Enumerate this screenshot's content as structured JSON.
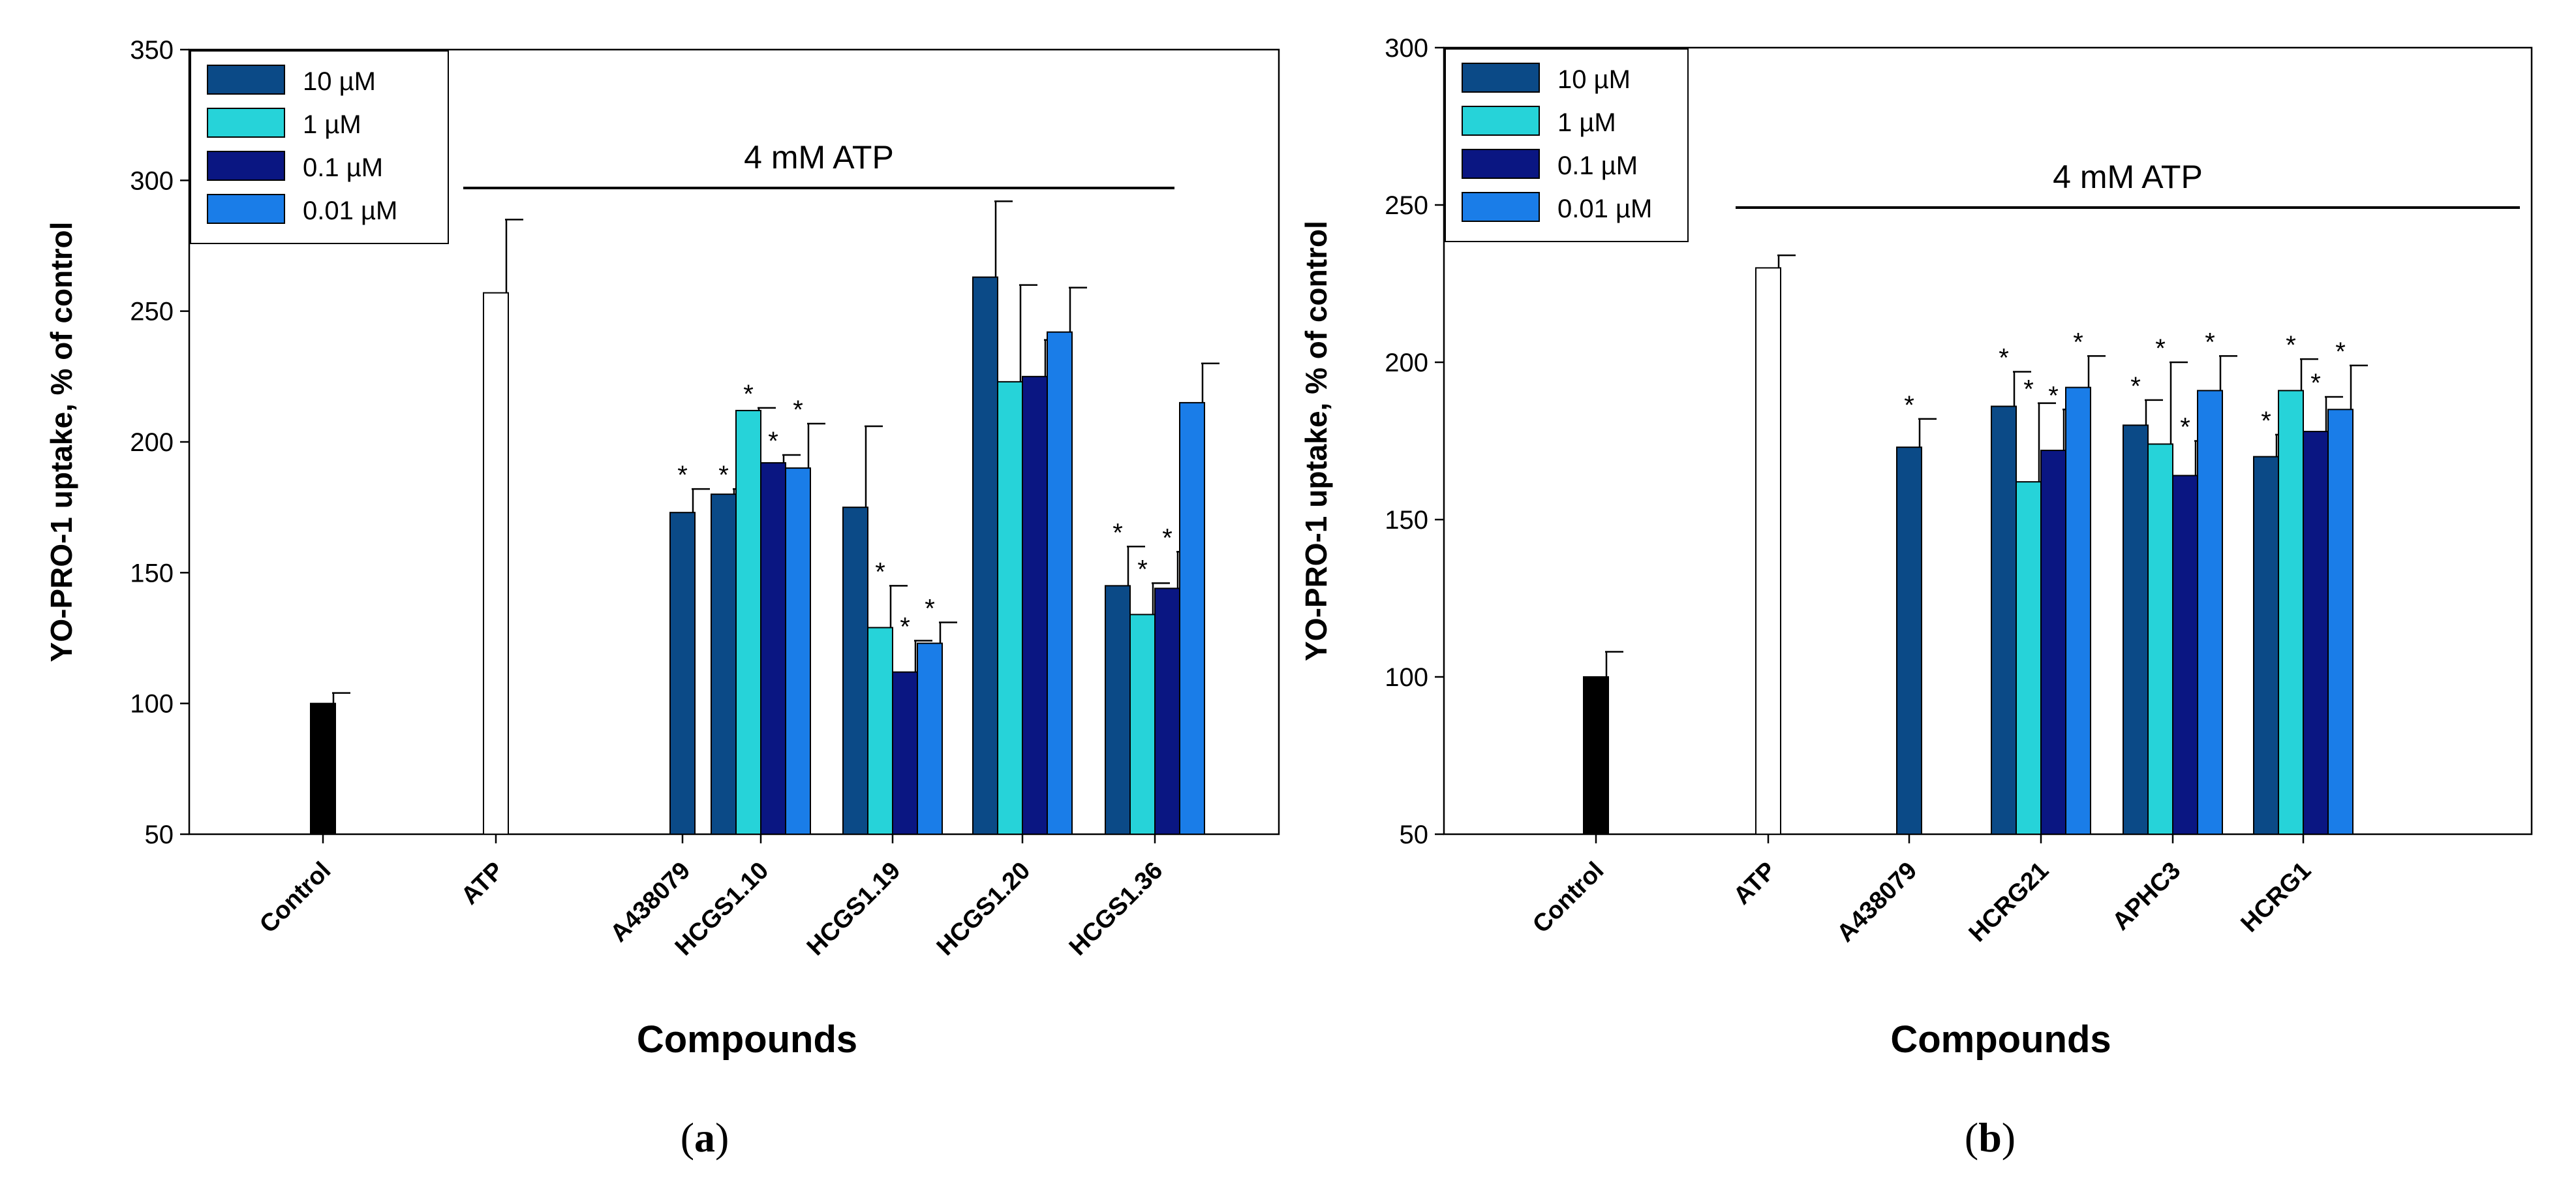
{
  "chart_data": [
    {
      "type": "bar",
      "panel_label_prefix": "(",
      "panel_label_letter": "a",
      "panel_label_suffix": ")",
      "title": "",
      "xlabel": "Compounds",
      "ylabel": "YO-PRO-1 uptake, % of control",
      "ylim": [
        50,
        350
      ],
      "yticks": [
        50,
        100,
        150,
        200,
        250,
        300,
        350
      ],
      "grid": false,
      "legend_position": "top-left",
      "annotation": "4 mM ATP",
      "legend": [
        {
          "label": "10 µM",
          "color": "#0b4a87"
        },
        {
          "label": "1 µM",
          "color": "#26d3d9"
        },
        {
          "label": "0.1 µM",
          "color": "#0a1682"
        },
        {
          "label": "0.01 µM",
          "color": "#1a7de8"
        }
      ],
      "categories": [
        "Control",
        "ATP",
        "A438079",
        "HCGS1.10",
        "HCGS1.19",
        "HCGS1.20",
        "HCGS1.36"
      ],
      "groups": [
        {
          "category": "Control",
          "bars": [
            {
              "value": 100,
              "error": 4,
              "color": "#000000",
              "sig": false
            }
          ]
        },
        {
          "category": "ATP",
          "bars": [
            {
              "value": 257,
              "error": 28,
              "color": "#ffffff",
              "sig": false
            }
          ]
        },
        {
          "category": "A438079",
          "bars": [
            {
              "value": 173,
              "error": 9,
              "color": "#0b4a87",
              "sig": true
            }
          ]
        },
        {
          "category": "HCGS1.10",
          "bars": [
            {
              "value": 180,
              "error": 2,
              "color": "#0b4a87",
              "sig": true
            },
            {
              "value": 212,
              "error": 1,
              "color": "#26d3d9",
              "sig": true
            },
            {
              "value": 192,
              "error": 3,
              "color": "#0a1682",
              "sig": true
            },
            {
              "value": 190,
              "error": 17,
              "color": "#1a7de8",
              "sig": true
            }
          ]
        },
        {
          "category": "HCGS1.19",
          "bars": [
            {
              "value": 175,
              "error": 31,
              "color": "#0b4a87",
              "sig": false
            },
            {
              "value": 129,
              "error": 16,
              "color": "#26d3d9",
              "sig": true
            },
            {
              "value": 112,
              "error": 12,
              "color": "#0a1682",
              "sig": true
            },
            {
              "value": 123,
              "error": 8,
              "color": "#1a7de8",
              "sig": true
            }
          ]
        },
        {
          "category": "HCGS1.20",
          "bars": [
            {
              "value": 263,
              "error": 29,
              "color": "#0b4a87",
              "sig": false
            },
            {
              "value": 223,
              "error": 37,
              "color": "#26d3d9",
              "sig": false
            },
            {
              "value": 225,
              "error": 14,
              "color": "#0a1682",
              "sig": false
            },
            {
              "value": 242,
              "error": 17,
              "color": "#1a7de8",
              "sig": false
            }
          ]
        },
        {
          "category": "HCGS1.36",
          "bars": [
            {
              "value": 145,
              "error": 15,
              "color": "#0b4a87",
              "sig": true
            },
            {
              "value": 134,
              "error": 12,
              "color": "#26d3d9",
              "sig": true
            },
            {
              "value": 144,
              "error": 14,
              "color": "#0a1682",
              "sig": true
            },
            {
              "value": 215,
              "error": 15,
              "color": "#1a7de8",
              "sig": false
            }
          ]
        }
      ]
    },
    {
      "type": "bar",
      "panel_label_prefix": "(",
      "panel_label_letter": "b",
      "panel_label_suffix": ")",
      "title": "",
      "xlabel": "Compounds",
      "ylabel": "YO-PRO-1 uptake, % of control",
      "ylim": [
        50,
        300
      ],
      "yticks": [
        50,
        100,
        150,
        200,
        250,
        300
      ],
      "grid": false,
      "legend_position": "top-left",
      "annotation": "4 mM ATP",
      "legend": [
        {
          "label": "10 µM",
          "color": "#0b4a87"
        },
        {
          "label": "1 µM",
          "color": "#26d3d9"
        },
        {
          "label": "0.1 µM",
          "color": "#0a1682"
        },
        {
          "label": "0.01 µM",
          "color": "#1a7de8"
        }
      ],
      "categories": [
        "Control",
        "ATP",
        "A438079",
        "HCRG21",
        "APHC3",
        "HCRG1"
      ],
      "groups": [
        {
          "category": "Control",
          "bars": [
            {
              "value": 100,
              "error": 8,
              "color": "#000000",
              "sig": false
            }
          ]
        },
        {
          "category": "ATP",
          "bars": [
            {
              "value": 230,
              "error": 4,
              "color": "#ffffff",
              "sig": false
            }
          ]
        },
        {
          "category": "A438079",
          "bars": [
            {
              "value": 173,
              "error": 9,
              "color": "#0b4a87",
              "sig": true
            }
          ]
        },
        {
          "category": "HCRG21",
          "bars": [
            {
              "value": 186,
              "error": 11,
              "color": "#0b4a87",
              "sig": true
            },
            {
              "value": 162,
              "error": 25,
              "color": "#26d3d9",
              "sig": true
            },
            {
              "value": 172,
              "error": 13,
              "color": "#0a1682",
              "sig": true
            },
            {
              "value": 192,
              "error": 10,
              "color": "#1a7de8",
              "sig": true
            }
          ]
        },
        {
          "category": "APHC3",
          "bars": [
            {
              "value": 180,
              "error": 8,
              "color": "#0b4a87",
              "sig": true
            },
            {
              "value": 174,
              "error": 26,
              "color": "#26d3d9",
              "sig": true
            },
            {
              "value": 164,
              "error": 11,
              "color": "#0a1682",
              "sig": true
            },
            {
              "value": 191,
              "error": 11,
              "color": "#1a7de8",
              "sig": true
            }
          ]
        },
        {
          "category": "HCRG1",
          "bars": [
            {
              "value": 170,
              "error": 7,
              "color": "#0b4a87",
              "sig": true
            },
            {
              "value": 191,
              "error": 10,
              "color": "#26d3d9",
              "sig": true
            },
            {
              "value": 178,
              "error": 11,
              "color": "#0a1682",
              "sig": true
            },
            {
              "value": 185,
              "error": 14,
              "color": "#1a7de8",
              "sig": true
            }
          ]
        }
      ]
    }
  ]
}
